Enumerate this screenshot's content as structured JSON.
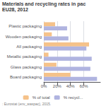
{
  "chart_data": {
    "type": "bar",
    "title": "Materials and recycling rates in pac",
    "subtitle": "EU28, 2012",
    "orientation": "horizontal",
    "categories": [
      "Plastic packaging",
      "Wooden packaging",
      "All packaging",
      "Metallic packaging",
      "Glass packaging",
      "Board packaging"
    ],
    "series": [
      {
        "name": "% of total",
        "color": "#f5c28a",
        "values": [
          17,
          12,
          68,
          7,
          19,
          40
        ]
      },
      {
        "name": "% recycl...",
        "color": "#b0b4e0",
        "values": [
          35,
          37,
          64,
          72,
          70,
          80
        ]
      }
    ],
    "xlim": [
      0,
      85
    ],
    "xticks": [
      {
        "value": 0,
        "label": "0%"
      },
      {
        "value": 20,
        "label": "20%"
      },
      {
        "value": 40,
        "label": "40%"
      },
      {
        "value": 60,
        "label": "60%"
      }
    ],
    "grid": true,
    "legend": "bottom",
    "annotations": [
      ": Eurostat (env_waspac), 2015."
    ]
  }
}
